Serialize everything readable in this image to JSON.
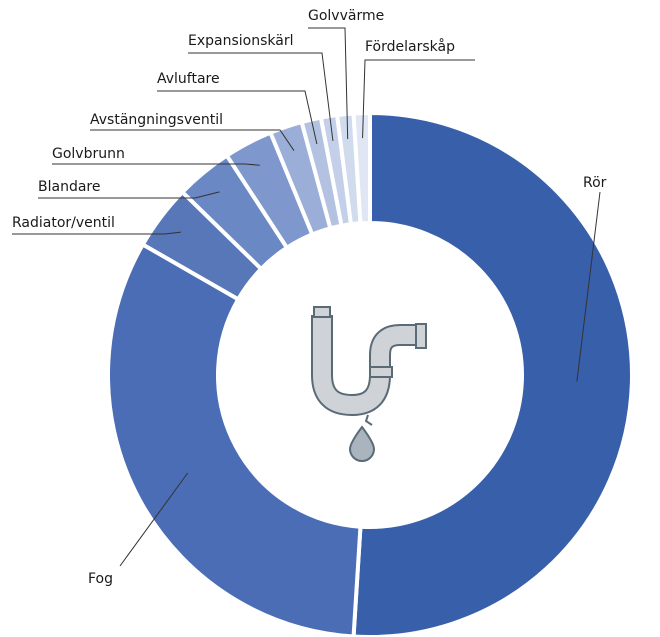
{
  "chart_data": {
    "type": "donut",
    "categories": [
      "Rör",
      "Fog",
      "Radiator/ventil",
      "Blandare",
      "Golvbrunn",
      "Avstängningsventil",
      "Avluftare",
      "Expansionskärl",
      "Golvvärme",
      "Fördelarskåp"
    ],
    "values": [
      51,
      32.3,
      4,
      3.5,
      3,
      2,
      1.2,
      1,
      1,
      1
    ],
    "colors": [
      "#385fa9",
      "#4a6db5",
      "#5777b9",
      "#6a88c4",
      "#7e97cc",
      "#9aaed8",
      "#b3c2e1",
      "#c4d0e9",
      "#d1dbee",
      "#e0e6f4"
    ]
  }
}
